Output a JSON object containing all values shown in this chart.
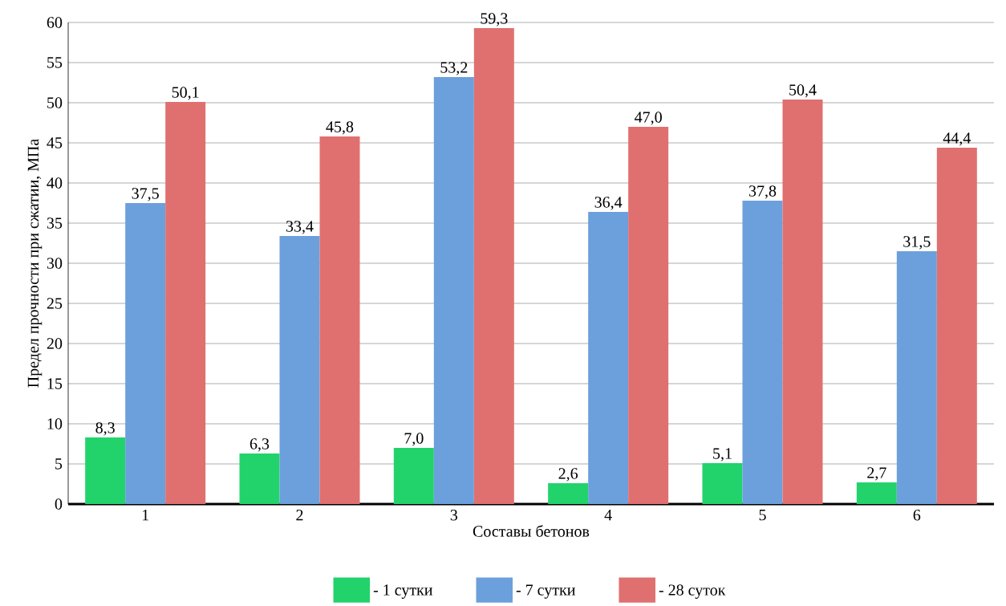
{
  "chart_data": {
    "type": "bar",
    "xlabel": "Составы бетонов",
    "ylabel": "Предел прочности при сжатии, МПа",
    "categories": [
      "1",
      "2",
      "3",
      "4",
      "5",
      "6"
    ],
    "series": [
      {
        "name": "- 1 сутки",
        "color": "#22d36b",
        "values": [
          8.3,
          6.3,
          7.0,
          2.6,
          5.1,
          2.7
        ],
        "value_labels": [
          "8,3",
          "6,3",
          "7,0",
          "2,6",
          "5,1",
          "2,7"
        ]
      },
      {
        "name": "- 7 сутки",
        "color": "#6ca0dc",
        "values": [
          37.5,
          33.4,
          53.2,
          36.4,
          37.8,
          31.5
        ],
        "value_labels": [
          "37,5",
          "33,4",
          "53,2",
          "36,4",
          "37,8",
          "31,5"
        ]
      },
      {
        "name": "- 28 суток",
        "color": "#e07070",
        "values": [
          50.1,
          45.8,
          59.3,
          47.0,
          50.4,
          44.4
        ],
        "value_labels": [
          "50,1",
          "45,8",
          "59,3",
          "47,0",
          "50,4",
          "44,4"
        ]
      }
    ],
    "ylim": [
      0,
      60
    ],
    "yticks": [
      0,
      5,
      10,
      15,
      20,
      25,
      30,
      35,
      40,
      45,
      50,
      55,
      60
    ],
    "grid": "y",
    "legend": "bottom"
  }
}
